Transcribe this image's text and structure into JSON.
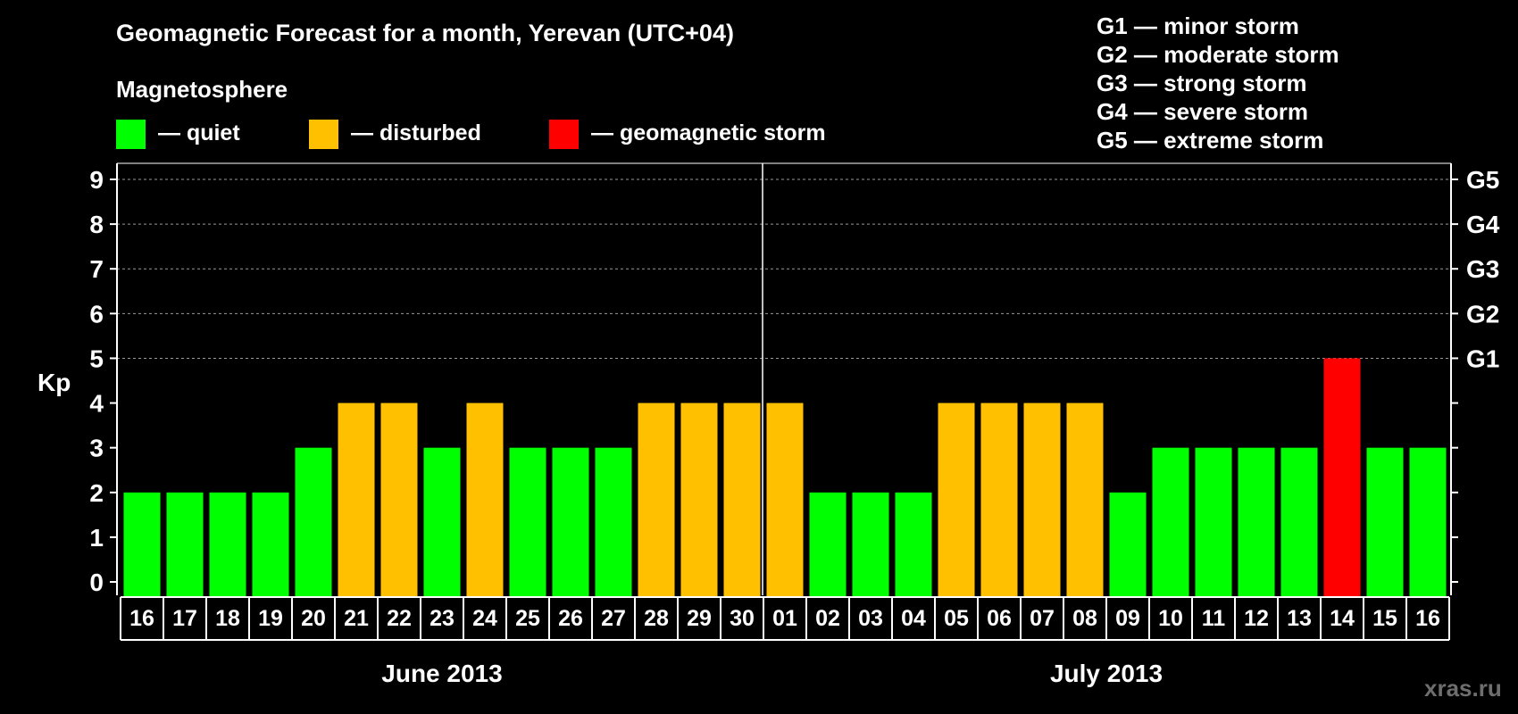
{
  "title": "Geomagnetic Forecast for a month, Yerevan (UTC+04)",
  "subtitle": "Magnetosphere",
  "legend": [
    {
      "label": "— quiet",
      "color": "#00ff00"
    },
    {
      "label": "— disturbed",
      "color": "#ffc000"
    },
    {
      "label": "— geomagnetic storm",
      "color": "#ff0000"
    }
  ],
  "storm_levels": [
    "G1 — minor storm",
    "G2 — moderate storm",
    "G3 — strong storm",
    "G4 — severe storm",
    "G5 — extreme storm"
  ],
  "credit": "xras.ru",
  "colors": {
    "quiet": "#00ff00",
    "disturbed": "#ffc000",
    "storm": "#ff0000",
    "background": "#000000"
  },
  "chart_data": {
    "type": "bar",
    "ylabel": "Kp",
    "ylim": [
      0,
      9
    ],
    "yticks": [
      "0",
      "1",
      "2",
      "3",
      "4",
      "5",
      "6",
      "7",
      "8",
      "9"
    ],
    "right_tick_labels": [
      {
        "kp": 5,
        "label": "G1"
      },
      {
        "kp": 6,
        "label": "G2"
      },
      {
        "kp": 7,
        "label": "G3"
      },
      {
        "kp": 8,
        "label": "G4"
      },
      {
        "kp": 9,
        "label": "G5"
      }
    ],
    "grid": "dashed horizontal at Kp 5-9",
    "categories": [
      "16",
      "17",
      "18",
      "19",
      "20",
      "21",
      "22",
      "23",
      "24",
      "25",
      "26",
      "27",
      "28",
      "29",
      "30",
      "01",
      "02",
      "03",
      "04",
      "05",
      "06",
      "07",
      "08",
      "09",
      "10",
      "11",
      "12",
      "13",
      "14",
      "15",
      "16"
    ],
    "values": [
      2,
      2,
      2,
      2,
      3,
      4,
      4,
      3,
      4,
      3,
      3,
      3,
      4,
      4,
      4,
      4,
      2,
      2,
      2,
      4,
      4,
      4,
      4,
      2,
      3,
      3,
      3,
      3,
      5,
      3,
      3
    ],
    "levels": [
      "quiet",
      "quiet",
      "quiet",
      "quiet",
      "quiet",
      "disturbed",
      "disturbed",
      "quiet",
      "disturbed",
      "quiet",
      "quiet",
      "quiet",
      "disturbed",
      "disturbed",
      "disturbed",
      "disturbed",
      "quiet",
      "quiet",
      "quiet",
      "disturbed",
      "disturbed",
      "disturbed",
      "disturbed",
      "quiet",
      "quiet",
      "quiet",
      "quiet",
      "quiet",
      "storm",
      "quiet",
      "quiet"
    ],
    "month_groups": [
      {
        "label": "June 2013",
        "first": 0,
        "last": 14
      },
      {
        "label": "July 2013",
        "first": 15,
        "last": 30
      }
    ]
  }
}
